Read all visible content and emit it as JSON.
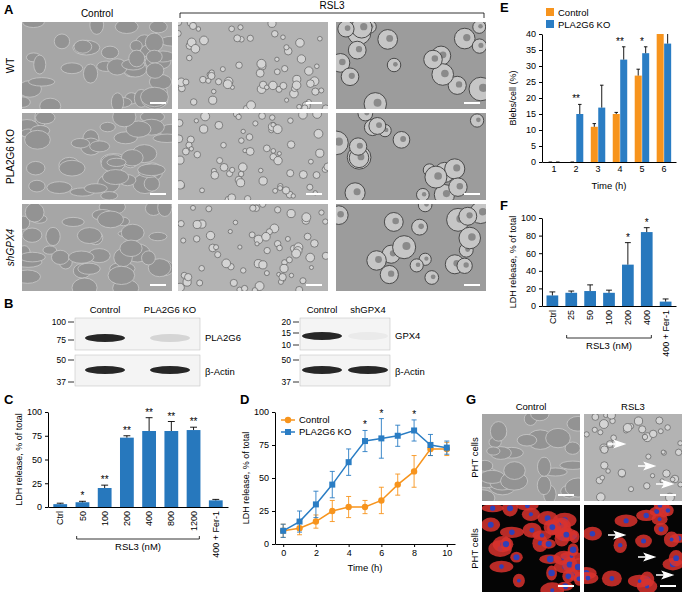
{
  "figure": {
    "panel_a": {
      "label": "A",
      "columns": [
        "Control",
        "RSL3"
      ],
      "rows": [
        "WT",
        "PLA2G6 KO",
        "shGPX4"
      ]
    },
    "panel_b": {
      "label": "B",
      "blots": [
        {
          "lanes": [
            "Control",
            "PLA2G6 KO"
          ],
          "markers": [
            100,
            75,
            50,
            37
          ],
          "proteins": [
            "PLA2G6",
            "β-Actin"
          ]
        },
        {
          "lanes": [
            "Control",
            "shGPX4"
          ],
          "markers": [
            20,
            15,
            10,
            50,
            37
          ],
          "proteins": [
            "GPX4",
            "β-Actin"
          ]
        }
      ]
    },
    "panel_g": {
      "label": "G",
      "columns": [
        "Control",
        "RSL3"
      ],
      "rows": [
        "PHT cells",
        "PHT cells"
      ]
    }
  },
  "chart_data": [
    {
      "type": "bar",
      "title": "C",
      "categories": [
        "Ctrl",
        "50",
        "100",
        "200",
        "400",
        "800",
        "1200",
        "400 + Fer-1"
      ],
      "values": [
        3,
        5,
        20,
        73,
        80,
        80,
        81,
        7
      ],
      "errors": [
        1,
        1,
        3,
        2,
        14,
        10,
        3,
        1
      ],
      "significance": [
        null,
        "*",
        "**",
        "**",
        "**",
        "**",
        "**",
        null
      ],
      "color": "#2778bd",
      "xlabel": "RSL3 (nM)",
      "ylabel": "LDH release, % of total",
      "ylim": [
        0,
        100
      ],
      "yticks": [
        0,
        25,
        50,
        75,
        100
      ]
    },
    {
      "type": "line",
      "title": "D",
      "x": [
        0,
        1,
        2,
        3,
        4,
        5,
        6,
        7,
        8,
        9,
        10
      ],
      "series": [
        {
          "name": "Control",
          "color": "#f7941d",
          "marker": "circle",
          "values": [
            10,
            12,
            17,
            25,
            28,
            28,
            33,
            45,
            55,
            72,
            72
          ],
          "errors": [
            5,
            5,
            5,
            8,
            8,
            5,
            10,
            8,
            12,
            5,
            5
          ]
        },
        {
          "name": "PLA2G6 KO",
          "color": "#2a7dc4",
          "marker": "square",
          "values": [
            10,
            17,
            30,
            45,
            62,
            78,
            80,
            82,
            86,
            75,
            73
          ],
          "errors": [
            5,
            8,
            10,
            10,
            10,
            8,
            15,
            8,
            8,
            8,
            5
          ]
        }
      ],
      "significance": [
        null,
        null,
        null,
        null,
        null,
        "*",
        "*",
        null,
        "*",
        null,
        null
      ],
      "xlabel": "Time (h)",
      "ylabel": "LDH release, % of total",
      "xlim": [
        -0.5,
        10.5
      ],
      "xticks": [
        0,
        2,
        4,
        6,
        8,
        10
      ],
      "ylim": [
        0,
        100
      ],
      "yticks": [
        0,
        25,
        50,
        75,
        100
      ],
      "legend": "upper left"
    },
    {
      "type": "bar",
      "title": "E",
      "categories": [
        "1",
        "2",
        "3",
        "4",
        "5",
        "6"
      ],
      "series": [
        {
          "name": "Control",
          "color": "#f7941d",
          "values": [
            0,
            0,
            11,
            15,
            27,
            40
          ],
          "errors": [
            0,
            0,
            1,
            0.5,
            2,
            7
          ]
        },
        {
          "name": "PLA2G6 KO",
          "color": "#2a7dc4",
          "values": [
            0,
            15,
            17,
            32,
            34,
            37
          ],
          "errors": [
            0,
            3,
            7,
            4,
            2,
            6
          ]
        }
      ],
      "significance": [
        null,
        "**",
        null,
        "**",
        "*",
        null
      ],
      "xlabel": "Time (h)",
      "ylabel": "Blebs/cell (%)",
      "ylim": [
        0,
        40
      ],
      "yticks": [
        0,
        5,
        10,
        15,
        20,
        25,
        30,
        35,
        40
      ],
      "legend": "upper left"
    },
    {
      "type": "bar",
      "title": "F",
      "categories": [
        "Ctrl",
        "25",
        "50",
        "100",
        "200",
        "400",
        "400 + Fer-1"
      ],
      "values": [
        12,
        15,
        17,
        15,
        47,
        84,
        5
      ],
      "errors": [
        4,
        2,
        7,
        3,
        25,
        5,
        3
      ],
      "significance": [
        null,
        null,
        null,
        null,
        "*",
        "*",
        null
      ],
      "color": "#2778bd",
      "xlabel": "RSL3 (nM)",
      "ylabel": "LDH release, % of total",
      "ylim": [
        0,
        100
      ],
      "yticks": [
        0,
        20,
        40,
        60,
        80,
        100
      ]
    }
  ]
}
